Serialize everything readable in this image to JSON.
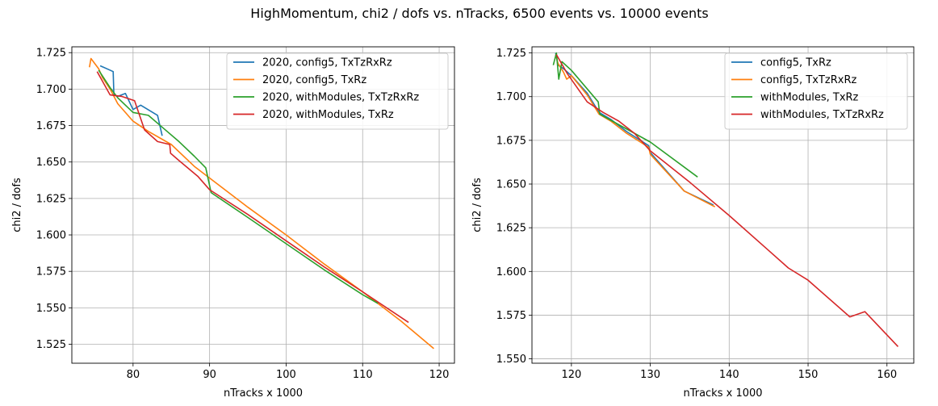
{
  "suptitle": "HighMomentum, chi2 / dofs vs. nTracks, 6500 events vs. 10000 events",
  "chart_data": [
    {
      "type": "line",
      "xlabel": "nTracks x 1000",
      "ylabel": "chi2 / dofs",
      "xlim": [
        72,
        122
      ],
      "ylim": [
        1.512,
        1.729
      ],
      "xticks": [
        80,
        90,
        100,
        110,
        120
      ],
      "yticks": [
        1.525,
        1.55,
        1.575,
        1.6,
        1.625,
        1.65,
        1.675,
        1.7,
        1.725
      ],
      "grid": true,
      "legend_position": "top-right",
      "series": [
        {
          "name": "2020, config5, TxTzRxRz",
          "color": "#1f77b4",
          "x": [
            75.7,
            77.4,
            77.5,
            78.0,
            79.0,
            80.0,
            81.0,
            83.2,
            83.8
          ],
          "y": [
            1.716,
            1.712,
            1.696,
            1.695,
            1.697,
            1.686,
            1.689,
            1.682,
            1.668
          ]
        },
        {
          "name": "2020, config5, TxRz",
          "color": "#ff7f0e",
          "x": [
            74.3,
            74.5,
            75.5,
            76.0,
            77.0,
            78.0,
            80.0,
            82.0,
            85.0,
            88.0,
            95.0,
            100.0,
            105.0,
            110.0,
            115.0,
            119.3
          ],
          "y": [
            1.715,
            1.721,
            1.714,
            1.708,
            1.7,
            1.69,
            1.678,
            1.671,
            1.662,
            1.647,
            1.619,
            1.6,
            1.58,
            1.561,
            1.541,
            1.522
          ]
        },
        {
          "name": "2020, withModules, TxTzRxRz",
          "color": "#2ca02c",
          "x": [
            75.5,
            77.0,
            78.0,
            80.0,
            82.0,
            84.0,
            86.0,
            88.0,
            89.5,
            90.2,
            95.0,
            100.0,
            105.0,
            110.0,
            112.0
          ],
          "y": [
            1.713,
            1.701,
            1.694,
            1.684,
            1.682,
            1.673,
            1.664,
            1.654,
            1.646,
            1.629,
            1.612,
            1.594,
            1.576,
            1.559,
            1.553
          ]
        },
        {
          "name": "2020, withModules, TxRz",
          "color": "#d62728",
          "x": [
            75.3,
            77.0,
            78.5,
            80.2,
            81.5,
            83.2,
            84.8,
            84.9,
            86.0,
            88.5,
            90.0,
            95.0,
            100.0,
            105.0,
            110.0,
            116.0
          ],
          "y": [
            1.712,
            1.696,
            1.695,
            1.692,
            1.672,
            1.664,
            1.662,
            1.656,
            1.651,
            1.64,
            1.631,
            1.614,
            1.596,
            1.578,
            1.561,
            1.54
          ]
        }
      ]
    },
    {
      "type": "line",
      "xlabel": "nTracks x 1000",
      "ylabel": "chi2 / dofs",
      "xlim": [
        115.0,
        163.4
      ],
      "ylim": [
        1.5475,
        1.7285
      ],
      "xticks": [
        120,
        130,
        140,
        150,
        160
      ],
      "yticks": [
        1.55,
        1.575,
        1.6,
        1.625,
        1.65,
        1.675,
        1.7,
        1.725
      ],
      "grid": true,
      "legend_position": "top-right",
      "series": [
        {
          "name": "config5, TxRz",
          "color": "#1f77b4",
          "x": [
            118.0,
            118.3,
            119.0,
            120.0,
            122.0,
            123.5,
            125.0,
            127.0,
            129.8,
            130.0,
            134.3,
            138.0
          ],
          "y": [
            1.725,
            1.718,
            1.716,
            1.712,
            1.702,
            1.691,
            1.687,
            1.68,
            1.672,
            1.668,
            1.646,
            1.638
          ]
        },
        {
          "name": "config5, TxTzRxRz",
          "color": "#ff7f0e",
          "x": [
            118.0,
            118.3,
            119.0,
            119.4,
            120.0,
            122.0,
            123.5,
            125.0,
            127.0,
            129.8,
            130.0,
            134.3,
            138.2
          ],
          "y": [
            1.724,
            1.719,
            1.714,
            1.71,
            1.712,
            1.701,
            1.69,
            1.686,
            1.679,
            1.671,
            1.667,
            1.646,
            1.637
          ]
        },
        {
          "name": "withModules, TxRz",
          "color": "#2ca02c",
          "x": [
            117.7,
            118.1,
            118.4,
            118.8,
            120.0,
            123.4,
            123.6,
            130.0,
            136.0
          ],
          "y": [
            1.718,
            1.725,
            1.71,
            1.72,
            1.715,
            1.697,
            1.69,
            1.674,
            1.654
          ]
        },
        {
          "name": "withModules, TxTzRxRz",
          "color": "#d62728",
          "x": [
            118.1,
            119.5,
            122.0,
            124.0,
            126.0,
            128.0,
            130.0,
            135.0,
            140.0,
            145.0,
            147.5,
            150.0,
            155.3,
            157.2,
            161.4
          ],
          "y": [
            1.724,
            1.713,
            1.697,
            1.691,
            1.686,
            1.679,
            1.669,
            1.651,
            1.632,
            1.612,
            1.602,
            1.595,
            1.574,
            1.577,
            1.557
          ]
        }
      ]
    }
  ]
}
